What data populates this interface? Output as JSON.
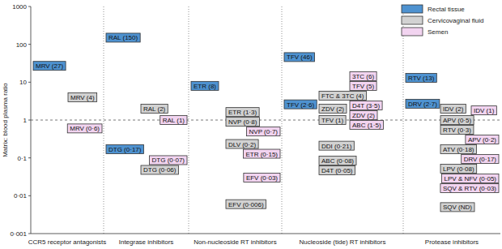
{
  "chart_data": {
    "type": "scatter",
    "marker": "label-box",
    "log": "y",
    "data_labels": true,
    "legend": "top-right",
    "ylabel": "Matrix: blood plasma ratio",
    "ylim": [
      0.001,
      1000
    ],
    "yticks": [
      {
        "value": 0.001,
        "label": "0·001"
      },
      {
        "value": 0.01,
        "label": "0·01"
      },
      {
        "value": 0.1,
        "label": "0·1"
      },
      1,
      10,
      100,
      1000
    ],
    "reference_lines": [
      1
    ],
    "categories": [
      "CCR5 receptor antagonists",
      "Integrase inhibitors",
      "Non-nucleoside RT inhibitors",
      "Nucleoside (tide) RT inhibitors",
      "Protease inhibitors"
    ],
    "series": [
      {
        "name": "Rectal tissue",
        "color": "#4e92d0",
        "x": [
          0,
          1,
          1,
          2,
          3,
          3,
          4,
          4
        ],
        "values": [
          27,
          150,
          0.17,
          8,
          46,
          2.6,
          13,
          2.7
        ],
        "value_labels": [
          "MRV (27)",
          "RAL (150)",
          "DTG (0·17)",
          "ETR (8)",
          "TFV (46)",
          "TFV (2·6)",
          "RTV (13)",
          "DRV (2·7)"
        ]
      },
      {
        "name": "Cervicovaginal fluid",
        "color": "#d2d2d2",
        "x": [
          0,
          1,
          1,
          2,
          2,
          2,
          2,
          3,
          3,
          3,
          3,
          3,
          3,
          4,
          4,
          4,
          4,
          4,
          4
        ],
        "values": [
          4,
          2,
          0.06,
          1.3,
          0.8,
          0.2,
          0.006,
          4,
          2,
          1,
          0.21,
          0.08,
          0.05,
          2,
          0.5,
          0.3,
          0.18,
          0.08,
          0.005
        ],
        "value_labels": [
          "MRV (4)",
          "RAL (2)",
          "DTG (0·06)",
          "ETR (1·3)",
          "NVP (0·8)",
          "DLV (0·2)",
          "EFV (0·006)",
          "FTC & 3TC (4)",
          "ZDV (2)",
          "TFV (1)",
          "DDI (0·21)",
          "ABC (0·08)",
          "D4T (0·05)",
          "IDV (2)",
          "APV (0·5)",
          "RTV (0·3)",
          "ATV (0·18)",
          "LPV (0·08)",
          "SQV (ND)"
        ]
      },
      {
        "name": "Semen",
        "color": "#f2d4f0",
        "x": [
          0,
          1,
          1,
          2,
          2,
          2,
          3,
          3,
          3,
          3,
          3,
          4,
          4,
          4,
          4,
          4
        ],
        "values": [
          0.6,
          1,
          0.07,
          0.7,
          0.15,
          0.03,
          6,
          5,
          3.5,
          2,
          1.5,
          1,
          0.2,
          0.17,
          0.05,
          0.03
        ],
        "value_labels": [
          "MRV (0·6)",
          "RAL (1)",
          "DTG (0·07)",
          "NVP (0·7)",
          "ETR (0·15)",
          "EFV (0·03)",
          "3TC (6)",
          "TFV (5)",
          "D4T (3·5)",
          "ZDV (2)",
          "ABC (1·5)",
          "IDV (1)",
          "APV (0·2)",
          "DRV (0·17)",
          "LPV & NFV (0·05)",
          "SQV & RTV (0·03)"
        ]
      }
    ]
  }
}
